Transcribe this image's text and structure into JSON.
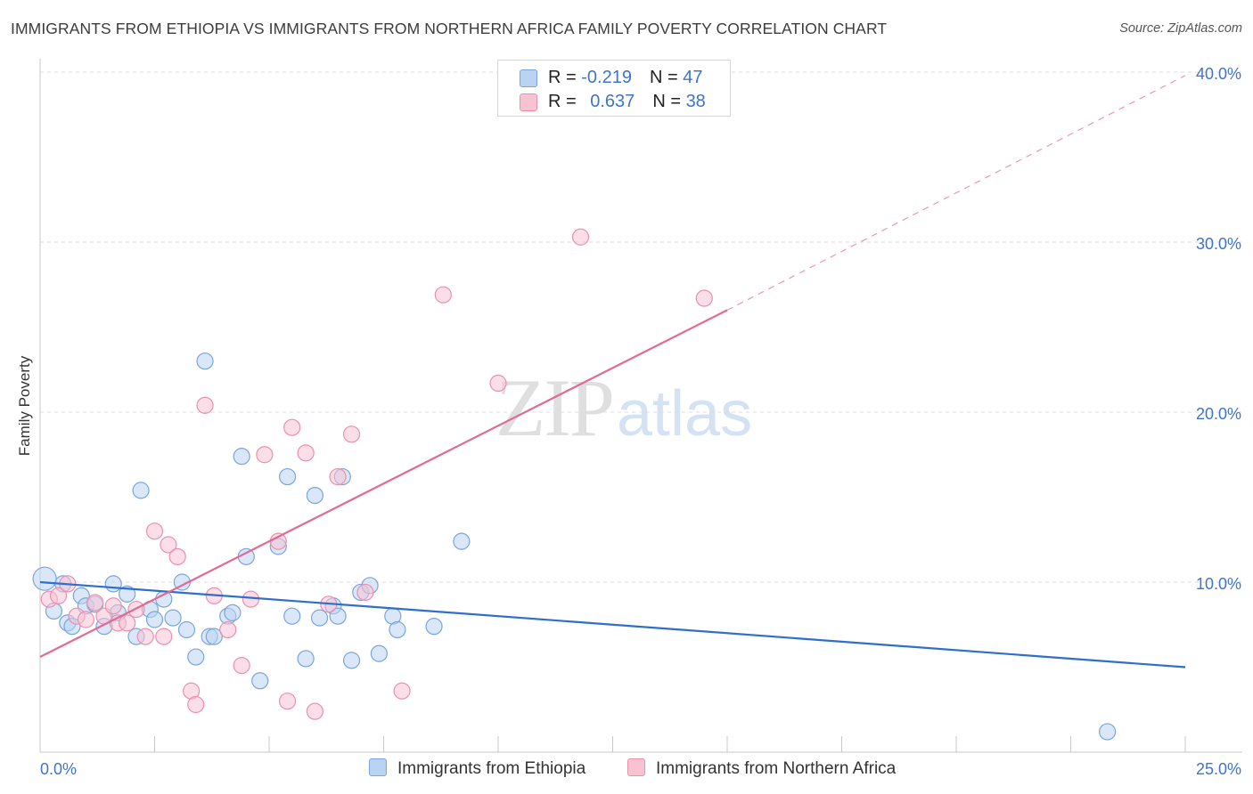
{
  "header": {
    "title": "IMMIGRANTS FROM ETHIOPIA VS IMMIGRANTS FROM NORTHERN AFRICA FAMILY POVERTY CORRELATION CHART",
    "source": "Source: ZipAtlas.com"
  },
  "watermark": {
    "zip": "ZIP",
    "atlas": "atlas"
  },
  "legend": {
    "series1": {
      "r_label": "R = ",
      "r_value": "-0.219",
      "n_label": "N = ",
      "n_value": "47"
    },
    "series2": {
      "r_label": "R = ",
      "r_value": "0.637",
      "n_label": "N = ",
      "n_value": "38"
    }
  },
  "colors": {
    "ethiopia_fill": "#b9d3f2",
    "ethiopia_stroke": "#7aa5dc",
    "ethiopia_line": "#2f6fcc",
    "nafrica_fill": "#f7c3d3",
    "nafrica_stroke": "#e891ae",
    "nafrica_line": "#e26a93",
    "grid": "#dcdcdc",
    "tick_text": "#3f74c7"
  },
  "chart_data": {
    "type": "scatter",
    "title": "IMMIGRANTS FROM ETHIOPIA VS IMMIGRANTS FROM NORTHERN AFRICA FAMILY POVERTY CORRELATION CHART",
    "xlabel": "",
    "ylabel": "Family Poverty",
    "xlim": [
      0,
      25
    ],
    "ylim": [
      0,
      40
    ],
    "x_ticks_labeled": [
      {
        "value": 0,
        "label": "0.0%"
      },
      {
        "value": 25,
        "label": "25.0%"
      }
    ],
    "y_ticks": [
      {
        "value": 10,
        "label": "10.0%"
      },
      {
        "value": 20,
        "label": "20.0%"
      },
      {
        "value": 30,
        "label": "30.0%"
      },
      {
        "value": 40,
        "label": "40.0%"
      }
    ],
    "grid": true,
    "legend_position": "bottom",
    "series": [
      {
        "name": "Immigrants from Ethiopia",
        "R": -0.219,
        "N": 47,
        "trend": {
          "x0": 0,
          "y0": 10.0,
          "x1": 25,
          "y1": 5.0,
          "style": "solid"
        },
        "points": [
          [
            0.1,
            10.2
          ],
          [
            0.3,
            8.3
          ],
          [
            0.5,
            9.9
          ],
          [
            0.6,
            7.6
          ],
          [
            0.7,
            7.4
          ],
          [
            0.9,
            9.2
          ],
          [
            1.0,
            8.6
          ],
          [
            1.2,
            8.7
          ],
          [
            1.4,
            7.4
          ],
          [
            1.6,
            9.9
          ],
          [
            1.7,
            8.2
          ],
          [
            1.9,
            9.3
          ],
          [
            2.1,
            6.8
          ],
          [
            2.2,
            15.4
          ],
          [
            2.4,
            8.4
          ],
          [
            2.5,
            7.8
          ],
          [
            2.7,
            9.0
          ],
          [
            2.9,
            7.9
          ],
          [
            3.1,
            10.0
          ],
          [
            3.2,
            7.2
          ],
          [
            3.4,
            5.6
          ],
          [
            3.6,
            23.0
          ],
          [
            3.7,
            6.8
          ],
          [
            3.8,
            6.8
          ],
          [
            4.1,
            8.0
          ],
          [
            4.2,
            8.2
          ],
          [
            4.4,
            17.4
          ],
          [
            4.5,
            11.5
          ],
          [
            4.8,
            4.2
          ],
          [
            5.2,
            12.1
          ],
          [
            5.4,
            16.2
          ],
          [
            5.5,
            8.0
          ],
          [
            5.8,
            5.5
          ],
          [
            6.0,
            15.1
          ],
          [
            6.1,
            7.9
          ],
          [
            6.4,
            8.6
          ],
          [
            6.5,
            8.0
          ],
          [
            6.6,
            16.2
          ],
          [
            6.8,
            5.4
          ],
          [
            7.0,
            9.4
          ],
          [
            7.2,
            9.8
          ],
          [
            7.4,
            5.8
          ],
          [
            7.7,
            8.0
          ],
          [
            7.8,
            7.2
          ],
          [
            8.6,
            7.4
          ],
          [
            9.2,
            12.4
          ],
          [
            23.3,
            1.2
          ]
        ]
      },
      {
        "name": "Immigrants from Northern Africa",
        "R": 0.637,
        "N": 38,
        "trend": {
          "x0": 0,
          "y0": 5.6,
          "x1": 15,
          "y1": 26.0,
          "style": "solid",
          "extension": {
            "x1": 25,
            "y1": 39.8,
            "style": "dashed"
          }
        },
        "points": [
          [
            0.2,
            9.0
          ],
          [
            0.4,
            9.2
          ],
          [
            0.6,
            9.9
          ],
          [
            0.8,
            8.0
          ],
          [
            1.0,
            7.8
          ],
          [
            1.2,
            8.8
          ],
          [
            1.4,
            8.0
          ],
          [
            1.6,
            8.6
          ],
          [
            1.7,
            7.6
          ],
          [
            1.9,
            7.6
          ],
          [
            2.1,
            8.4
          ],
          [
            2.3,
            6.8
          ],
          [
            2.5,
            13.0
          ],
          [
            2.7,
            6.8
          ],
          [
            2.8,
            12.2
          ],
          [
            3.0,
            11.5
          ],
          [
            3.3,
            3.6
          ],
          [
            3.4,
            2.8
          ],
          [
            3.6,
            20.4
          ],
          [
            3.8,
            9.2
          ],
          [
            4.1,
            7.2
          ],
          [
            4.4,
            5.1
          ],
          [
            4.6,
            9.0
          ],
          [
            4.9,
            17.5
          ],
          [
            5.2,
            12.4
          ],
          [
            5.4,
            3.0
          ],
          [
            5.5,
            19.1
          ],
          [
            5.8,
            17.6
          ],
          [
            6.0,
            2.4
          ],
          [
            6.3,
            8.7
          ],
          [
            6.5,
            16.2
          ],
          [
            6.8,
            18.7
          ],
          [
            7.1,
            9.4
          ],
          [
            7.9,
            3.6
          ],
          [
            8.8,
            26.9
          ],
          [
            10.0,
            21.7
          ],
          [
            11.8,
            30.3
          ],
          [
            14.5,
            26.7
          ]
        ]
      }
    ]
  }
}
